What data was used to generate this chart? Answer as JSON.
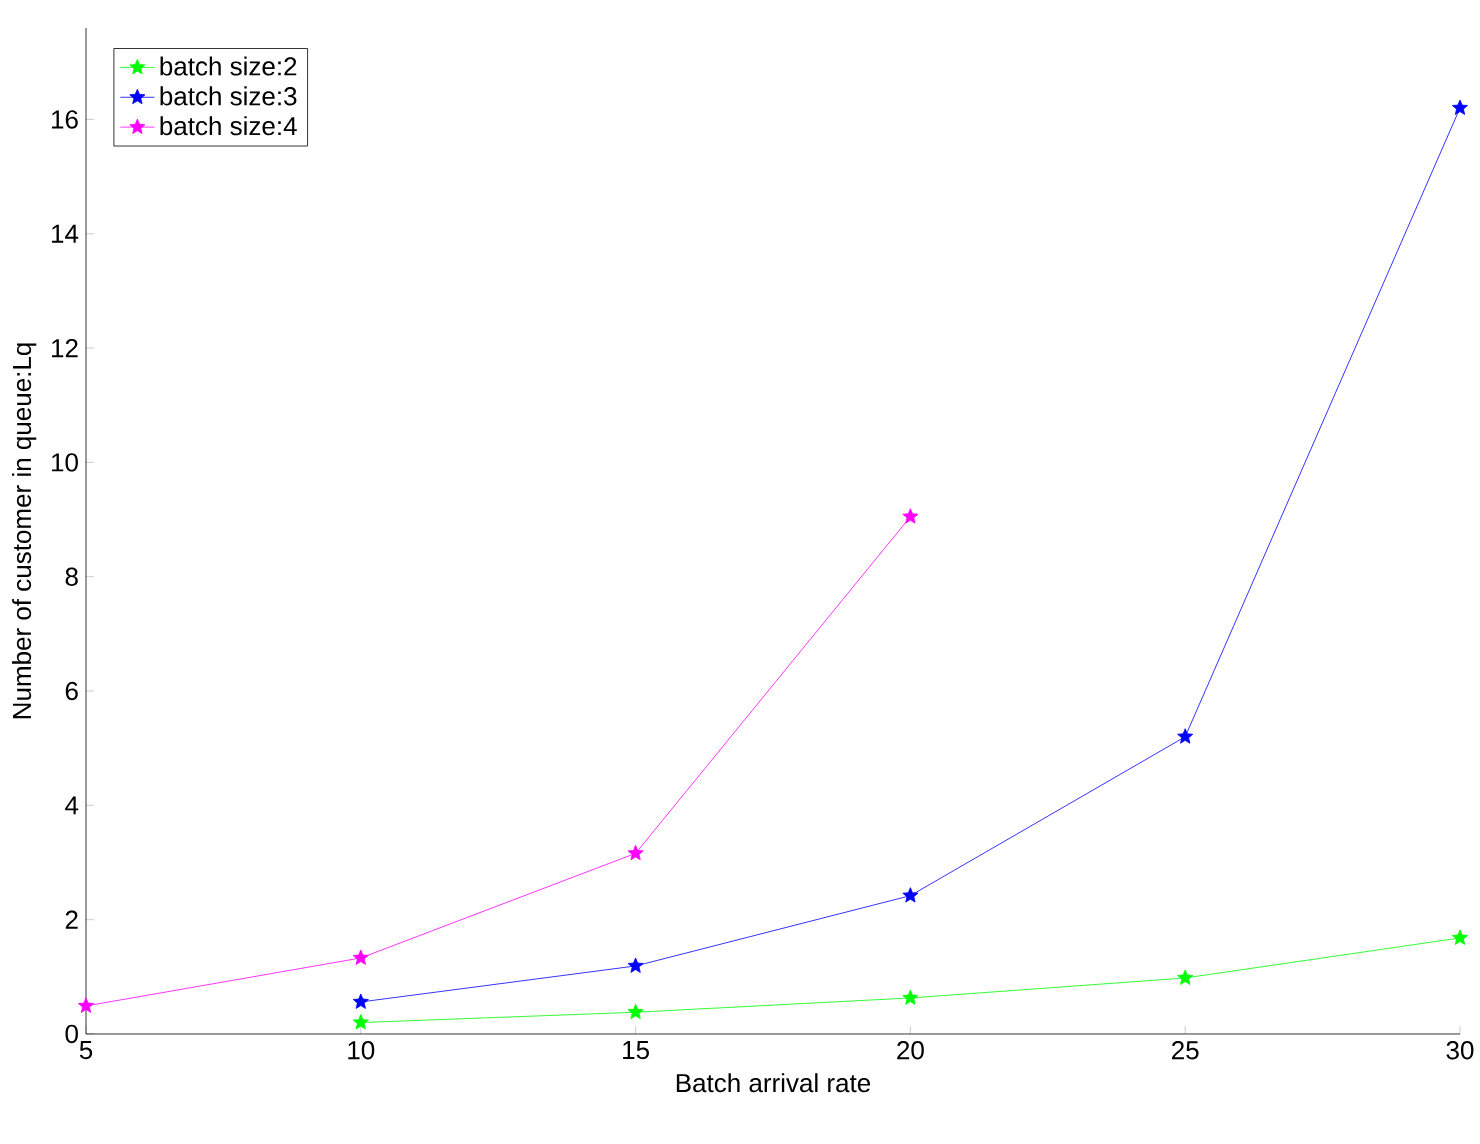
{
  "chart_data": {
    "type": "line",
    "xlabel": "Batch arrival rate",
    "ylabel": "Number of customer in queue:Lq",
    "xlim": [
      5,
      30
    ],
    "ylim": [
      0,
      17.6
    ],
    "xticks": [
      5,
      10,
      15,
      20,
      25,
      30
    ],
    "yticks": [
      0,
      2,
      4,
      6,
      8,
      10,
      12,
      14,
      16
    ],
    "legend": "top left",
    "marker": "star",
    "line_style": "solid",
    "grid": false,
    "series": [
      {
        "name": "batch size:2",
        "color": "#00ff00",
        "x": [
          10,
          15,
          20,
          25,
          30
        ],
        "values": [
          0.2,
          0.38,
          0.63,
          0.98,
          1.68
        ]
      },
      {
        "name": "batch size:3",
        "color": "#0000ff",
        "x": [
          10,
          15,
          20,
          25,
          30
        ],
        "values": [
          0.56,
          1.19,
          2.42,
          5.2,
          16.2
        ]
      },
      {
        "name": "batch size:4",
        "color": "#ff00ff",
        "x": [
          5,
          10,
          15,
          20
        ],
        "values": [
          0.49,
          1.33,
          3.16,
          9.05
        ]
      }
    ]
  }
}
